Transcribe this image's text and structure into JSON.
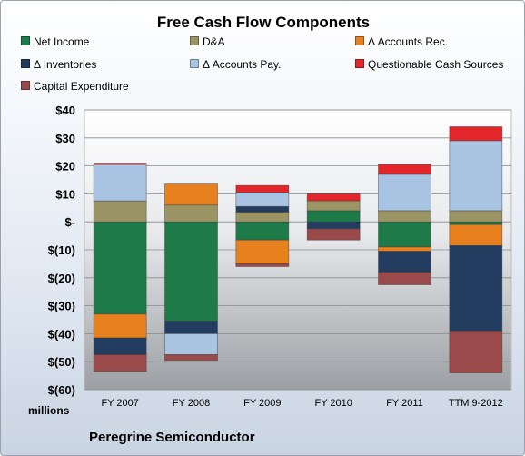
{
  "chart_data": {
    "type": "bar",
    "stacked": true,
    "title": "Free Cash Flow Components",
    "ylabel": "millions",
    "ylim": [
      -60,
      40
    ],
    "yticks": [
      {
        "value": 40,
        "label": "$40"
      },
      {
        "value": 30,
        "label": "$30"
      },
      {
        "value": 20,
        "label": "$20"
      },
      {
        "value": 10,
        "label": "$10"
      },
      {
        "value": 0,
        "label": "$-"
      },
      {
        "value": -10,
        "label": "$(10)"
      },
      {
        "value": -20,
        "label": "$(20)"
      },
      {
        "value": -30,
        "label": "$(30)"
      },
      {
        "value": -40,
        "label": "$(40)"
      },
      {
        "value": -50,
        "label": "$(50)"
      },
      {
        "value": -60,
        "label": "$(60)"
      }
    ],
    "categories": [
      "FY 2007",
      "FY 2008",
      "FY 2009",
      "FY 2010",
      "FY 2011",
      "TTM 9-2012"
    ],
    "series": [
      {
        "name": "Net Income",
        "color": "#1f7a4a",
        "values": [
          -33,
          -35.5,
          -6.5,
          4,
          -9,
          -1
        ]
      },
      {
        "name": "D&A",
        "color": "#9b9565",
        "values": [
          7.5,
          6,
          3.5,
          3.5,
          4,
          4
        ]
      },
      {
        "name": "Δ Accounts Rec.",
        "color": "#e8801e",
        "values": [
          -8.5,
          7.5,
          -8.5,
          0,
          -1.5,
          -7.5
        ]
      },
      {
        "name": "Δ Inventories",
        "color": "#223d60",
        "values": [
          -6,
          -4.5,
          2,
          -2.5,
          -7.5,
          -30.5
        ]
      },
      {
        "name": "Δ Accounts Pay.",
        "color": "#a9c3e3",
        "values": [
          13,
          -7.5,
          5,
          0,
          13,
          25
        ]
      },
      {
        "name": "Questionable Cash Sources",
        "color": "#e3262b",
        "values": [
          0.5,
          0,
          2.5,
          2.5,
          3.5,
          5
        ]
      },
      {
        "name": "Capital Expenditure",
        "color": "#9a4a4a",
        "values": [
          -6,
          -2,
          -1,
          -4,
          -4.5,
          -15
        ]
      }
    ]
  },
  "footer": {
    "company": "Peregrine Semiconductor"
  }
}
